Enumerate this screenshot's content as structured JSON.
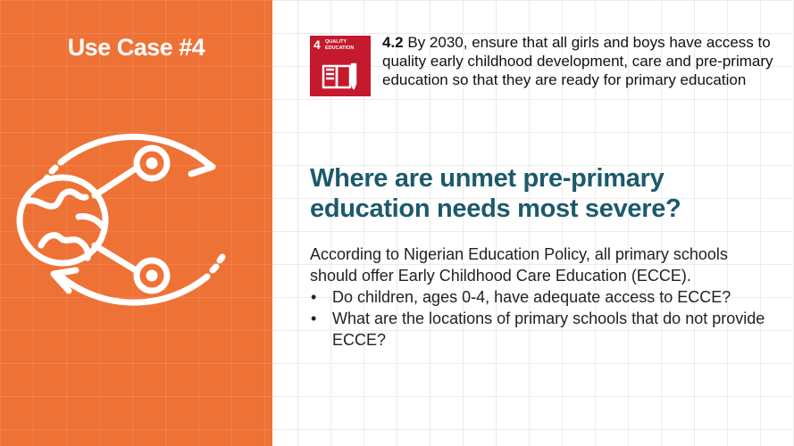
{
  "left_panel": {
    "title": "Use Case #4",
    "icon_name": "globe-cycle-icon",
    "accent_color": "#ee7235"
  },
  "sdg_badge": {
    "number": "4",
    "label": "QUALITY EDUCATION",
    "color": "#c5192d",
    "icon_name": "book-pencil-icon"
  },
  "target": {
    "code": "4.2",
    "text": " By 2030, ensure that all girls and boys have access to quality early childhood development, care and pre-primary education so that they are ready for primary education"
  },
  "question": "Where are unmet pre-primary education needs most severe?",
  "body": {
    "intro": "According to Nigerian Education Policy, all primary schools should offer Early Childhood Care Education (ECCE).",
    "bullets": [
      "Do children, ages 0-4, have adequate access to ECCE?",
      "What are the locations of primary schools that do not provide ECCE?"
    ],
    "bullet_glyph": "•"
  },
  "colors": {
    "question": "#1b5a6b"
  }
}
